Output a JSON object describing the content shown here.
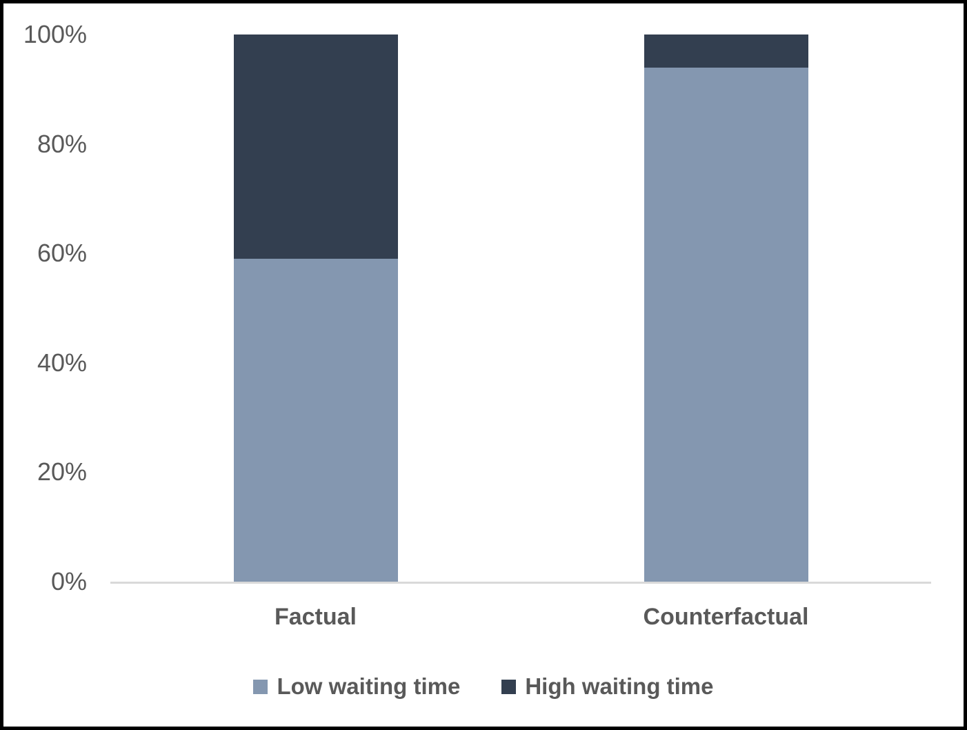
{
  "figure": {
    "background_color": "#FFFFFF",
    "frame_color": "#000000",
    "text_color": "#595959",
    "axis_line_color": "#D9D9D9"
  },
  "chart_data": {
    "type": "bar",
    "subtype": "100-percent-stacked-column",
    "title": "",
    "xlabel": "",
    "ylabel": "",
    "categories": [
      "Factual",
      "Counterfactual"
    ],
    "series": [
      {
        "name": "Low waiting time",
        "color": "#8497B0",
        "values": [
          59,
          94
        ]
      },
      {
        "name": "High waiting time",
        "color": "#333F50",
        "values": [
          41,
          6
        ]
      }
    ],
    "ylim": [
      0,
      100
    ],
    "yticks": [
      0,
      20,
      40,
      60,
      80,
      100
    ],
    "ytick_labels": [
      "0%",
      "20%",
      "40%",
      "60%",
      "80%",
      "100%"
    ],
    "grid": false,
    "legend_position": "bottom"
  }
}
